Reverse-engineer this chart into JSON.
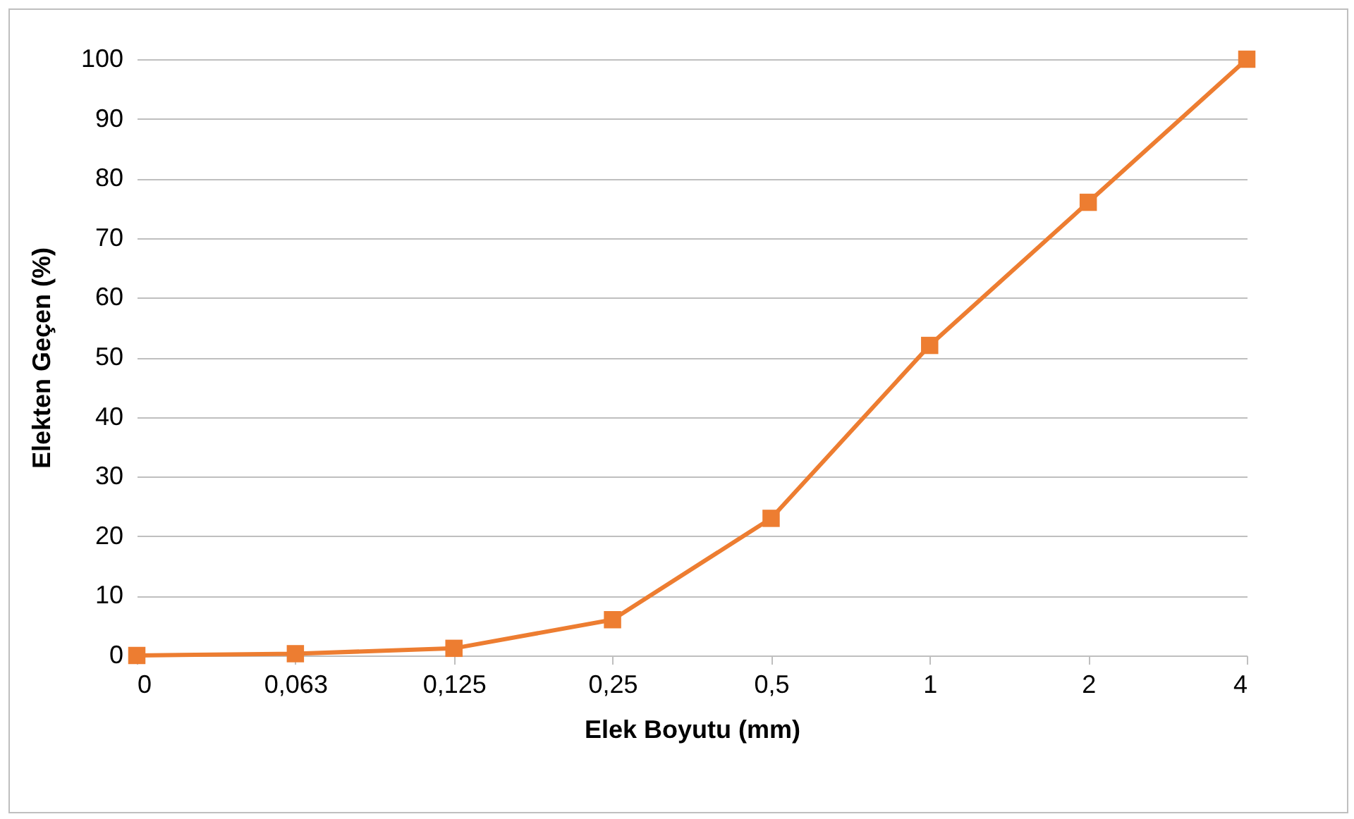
{
  "chart_data": {
    "type": "line",
    "xlabel": "Elek Boyutu (mm)",
    "ylabel": "Elekten Geçen (%)",
    "categories": [
      "0",
      "0,063",
      "0,125",
      "0,25",
      "0,5",
      "1",
      "2",
      "4"
    ],
    "series": [
      {
        "color": "#ed7d31",
        "values": [
          0,
          0.3,
          1.2,
          6,
          23,
          52,
          76,
          100
        ]
      }
    ],
    "ylim": [
      0,
      100
    ],
    "yticks": [
      0,
      10,
      20,
      30,
      40,
      50,
      60,
      70,
      80,
      90,
      100
    ],
    "grid": "y",
    "marker": "square",
    "line_style": "solid"
  }
}
